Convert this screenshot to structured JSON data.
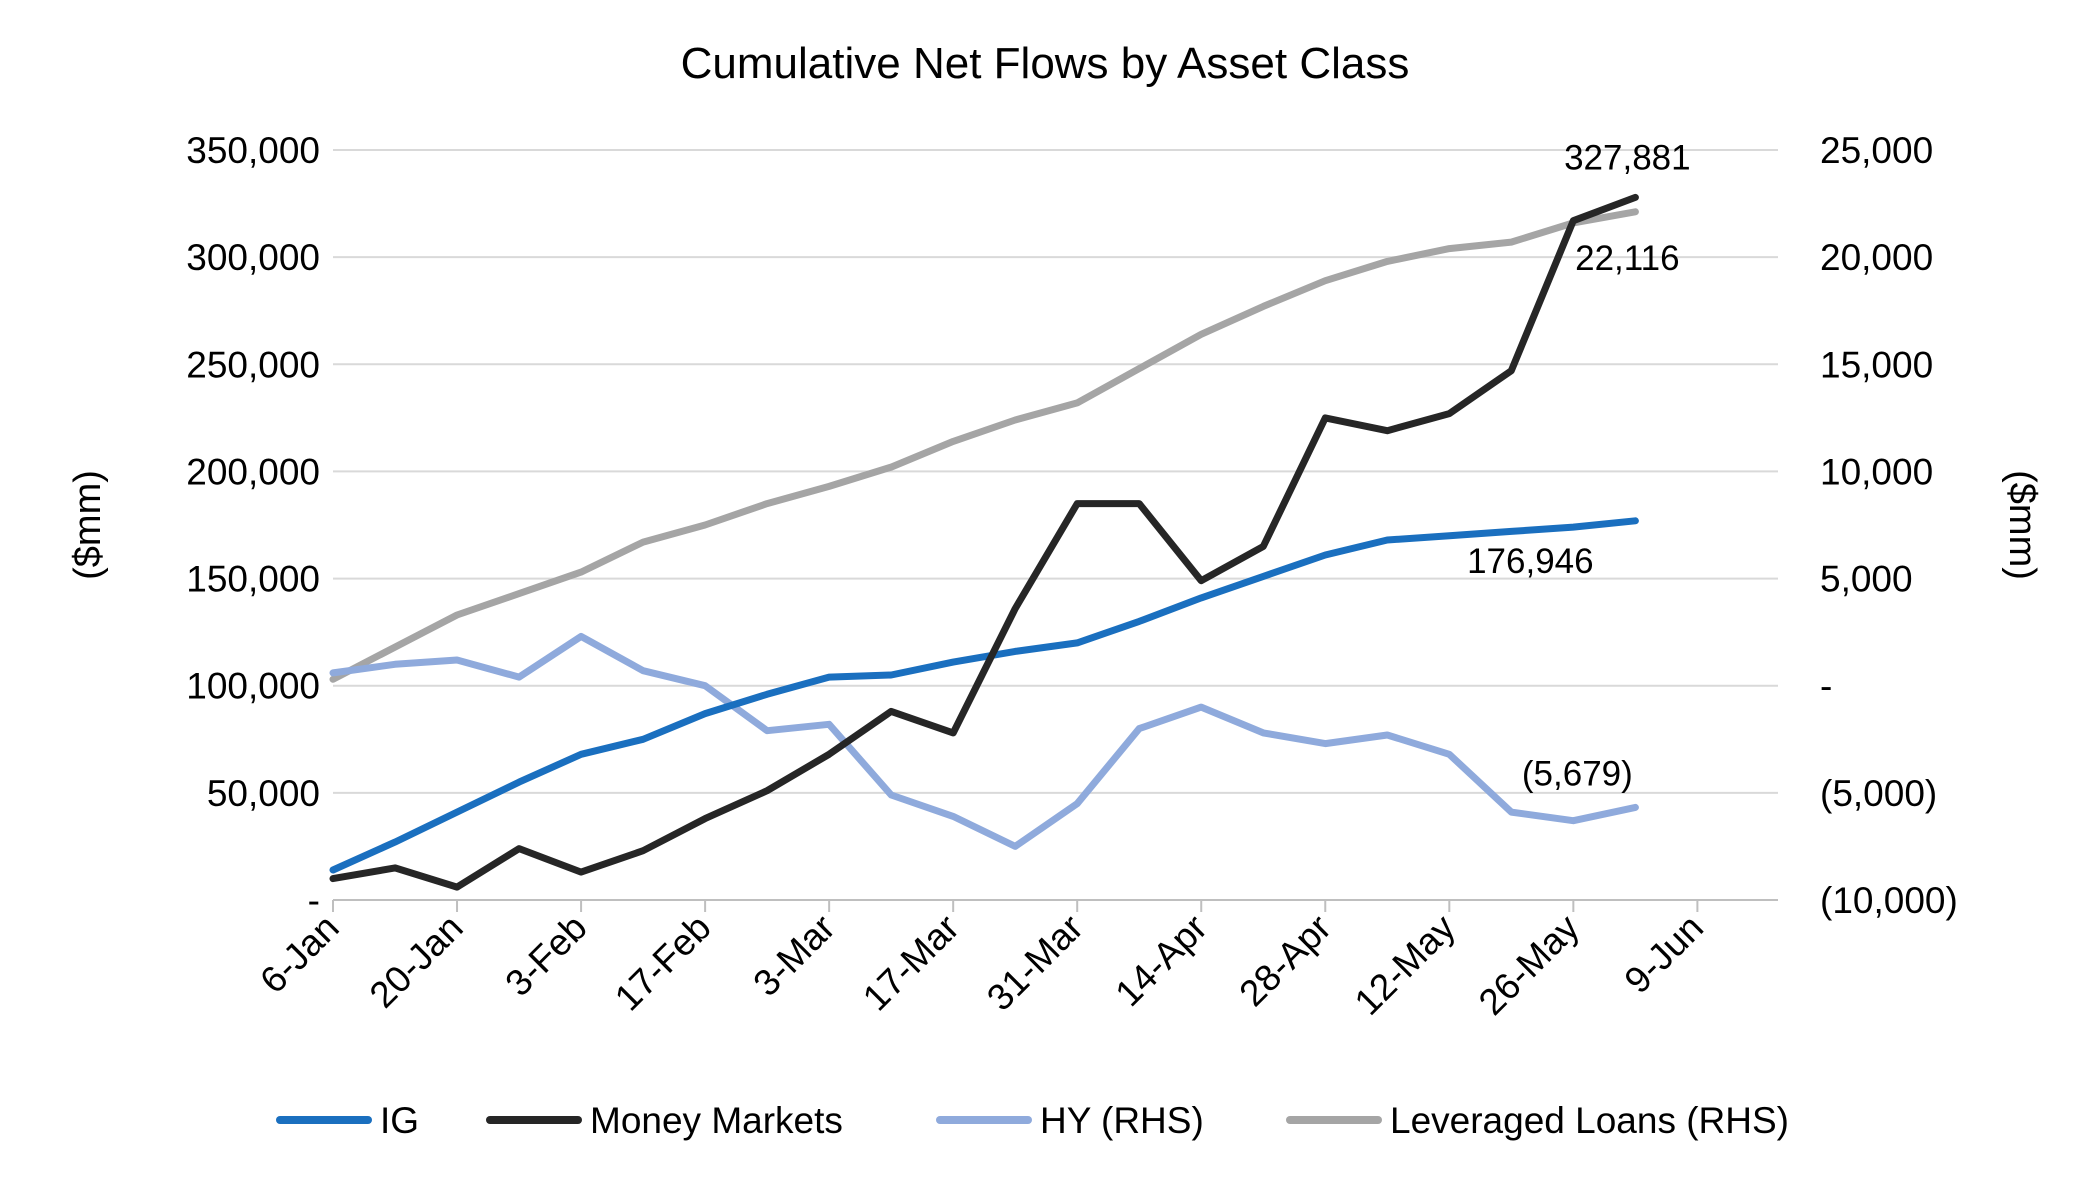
{
  "chart_data": {
    "type": "line",
    "title": "Cumulative Net Flows by Asset Class",
    "ylabel_left": "($mm)",
    "ylabel_right": "($mm)",
    "y_left": {
      "min": 0,
      "max": 350000,
      "step": 50000,
      "ticks": [
        "-",
        "50,000",
        "100,000",
        "150,000",
        "200,000",
        "250,000",
        "300,000",
        "350,000"
      ]
    },
    "y_right": {
      "min": -10000,
      "max": 25000,
      "step": 5000,
      "ticks": [
        "(10,000)",
        "(5,000)",
        "-",
        "5,000",
        "10,000",
        "15,000",
        "20,000",
        "25,000"
      ]
    },
    "x_ticks": [
      "6-Jan",
      "20-Jan",
      "3-Feb",
      "17-Feb",
      "3-Mar",
      "17-Mar",
      "31-Mar",
      "14-Apr",
      "28-Apr",
      "12-May",
      "26-May",
      "9-Jun"
    ],
    "x": [
      "6-Jan",
      "13-Jan",
      "20-Jan",
      "27-Jan",
      "3-Feb",
      "10-Feb",
      "17-Feb",
      "24-Feb",
      "3-Mar",
      "10-Mar",
      "17-Mar",
      "24-Mar",
      "31-Mar",
      "7-Apr",
      "14-Apr",
      "21-Apr",
      "28-Apr",
      "5-May",
      "12-May",
      "19-May",
      "26-May",
      "2-Jun"
    ],
    "grid": true,
    "legend_position": "bottom",
    "series": [
      {
        "name": "IG",
        "axis": "left",
        "color": "#1a6fbf",
        "values": [
          14000,
          27000,
          41000,
          55000,
          68000,
          75000,
          87000,
          96000,
          104000,
          105000,
          111000,
          116000,
          120000,
          130000,
          141000,
          151000,
          161000,
          168000,
          170000,
          172000,
          174000,
          176946
        ]
      },
      {
        "name": "Money Markets",
        "axis": "left",
        "color": "#262626",
        "values": [
          10000,
          15000,
          6000,
          24000,
          13000,
          23000,
          38000,
          51000,
          68000,
          88000,
          78000,
          136000,
          185000,
          185000,
          149000,
          165000,
          225000,
          219000,
          227000,
          247000,
          317000,
          327881
        ]
      },
      {
        "name": "HY (RHS)",
        "axis": "right",
        "color": "#8faadc",
        "values": [
          600,
          1000,
          1200,
          400,
          2300,
          700,
          0,
          -2100,
          -1800,
          -5100,
          -6100,
          -7500,
          -5500,
          -2000,
          -1000,
          -2200,
          -2700,
          -2300,
          -3200,
          -5900,
          -6300,
          -5679
        ]
      },
      {
        "name": "Leveraged Loans (RHS)",
        "axis": "right",
        "color": "#a5a5a5",
        "values": [
          300,
          1800,
          3300,
          4300,
          5300,
          6700,
          7500,
          8500,
          9300,
          10200,
          11400,
          12400,
          13200,
          14800,
          16400,
          17700,
          18900,
          19800,
          20400,
          20700,
          21600,
          22116
        ]
      }
    ],
    "annotations": [
      {
        "text": "327,881",
        "series": "Money Markets"
      },
      {
        "text": "22,116",
        "series": "Leveraged Loans (RHS)"
      },
      {
        "text": "176,946",
        "series": "IG"
      },
      {
        "text": "(5,679)",
        "series": "HY (RHS)"
      }
    ]
  }
}
